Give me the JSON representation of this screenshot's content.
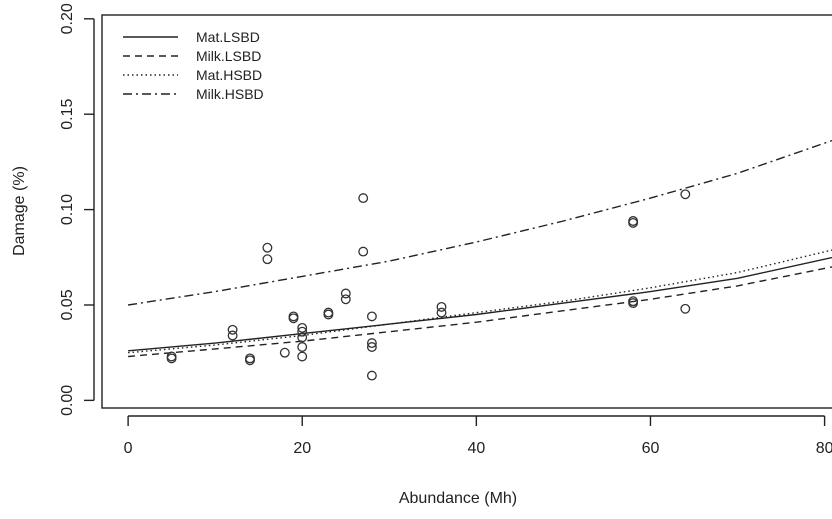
{
  "chart_data": {
    "type": "scatter",
    "title": "",
    "xlabel": "Abundance (Mh)",
    "ylabel": "Damage (%)",
    "xlim": [
      -3,
      82
    ],
    "ylim": [
      -0.004,
      0.202
    ],
    "x_ticks": [
      0,
      20,
      40,
      60,
      80
    ],
    "x_tick_labels": [
      "0",
      "20",
      "40",
      "60",
      "80"
    ],
    "y_ticks": [
      0.0,
      0.05,
      0.1,
      0.15,
      0.2
    ],
    "y_tick_labels": [
      "0.00",
      "0.05",
      "0.10",
      "0.15",
      "0.20"
    ],
    "grid": false,
    "legend_position": "top-left",
    "points": [
      {
        "x": 5,
        "y": 0.022
      },
      {
        "x": 5,
        "y": 0.023
      },
      {
        "x": 12,
        "y": 0.037
      },
      {
        "x": 12,
        "y": 0.034
      },
      {
        "x": 14,
        "y": 0.021
      },
      {
        "x": 14,
        "y": 0.022
      },
      {
        "x": 16,
        "y": 0.08
      },
      {
        "x": 16,
        "y": 0.074
      },
      {
        "x": 18,
        "y": 0.025
      },
      {
        "x": 19,
        "y": 0.044
      },
      {
        "x": 19,
        "y": 0.043
      },
      {
        "x": 20,
        "y": 0.038
      },
      {
        "x": 20,
        "y": 0.036
      },
      {
        "x": 20,
        "y": 0.033
      },
      {
        "x": 20,
        "y": 0.028
      },
      {
        "x": 20,
        "y": 0.023
      },
      {
        "x": 23,
        "y": 0.046
      },
      {
        "x": 23,
        "y": 0.045
      },
      {
        "x": 25,
        "y": 0.056
      },
      {
        "x": 25,
        "y": 0.053
      },
      {
        "x": 27,
        "y": 0.106
      },
      {
        "x": 27,
        "y": 0.078
      },
      {
        "x": 28,
        "y": 0.044
      },
      {
        "x": 28,
        "y": 0.03
      },
      {
        "x": 28,
        "y": 0.028
      },
      {
        "x": 28,
        "y": 0.013
      },
      {
        "x": 36,
        "y": 0.049
      },
      {
        "x": 36,
        "y": 0.046
      },
      {
        "x": 58,
        "y": 0.094
      },
      {
        "x": 58,
        "y": 0.093
      },
      {
        "x": 58,
        "y": 0.052
      },
      {
        "x": 58,
        "y": 0.051
      },
      {
        "x": 64,
        "y": 0.108
      },
      {
        "x": 64,
        "y": 0.048
      }
    ],
    "series": [
      {
        "name": "Mat.LSBD",
        "dash": "solid",
        "x": [
          0,
          10,
          20,
          30,
          40,
          50,
          60,
          70,
          82
        ],
        "y": [
          0.026,
          0.03,
          0.035,
          0.04,
          0.045,
          0.051,
          0.057,
          0.064,
          0.076
        ]
      },
      {
        "name": "Milk.LSBD",
        "dash": "dashed",
        "x": [
          0,
          10,
          20,
          30,
          40,
          50,
          60,
          70,
          82
        ],
        "y": [
          0.023,
          0.027,
          0.031,
          0.036,
          0.041,
          0.047,
          0.053,
          0.06,
          0.071
        ]
      },
      {
        "name": "Mat.HSBD",
        "dash": "dotted",
        "x": [
          0,
          10,
          20,
          30,
          40,
          50,
          60,
          70,
          82
        ],
        "y": [
          0.025,
          0.029,
          0.034,
          0.04,
          0.046,
          0.052,
          0.059,
          0.067,
          0.08
        ]
      },
      {
        "name": "Milk.HSBD",
        "dash": "dotdash",
        "x": [
          0,
          10,
          20,
          30,
          40,
          50,
          60,
          70,
          82
        ],
        "y": [
          0.05,
          0.057,
          0.065,
          0.073,
          0.083,
          0.094,
          0.106,
          0.119,
          0.138
        ]
      }
    ]
  }
}
